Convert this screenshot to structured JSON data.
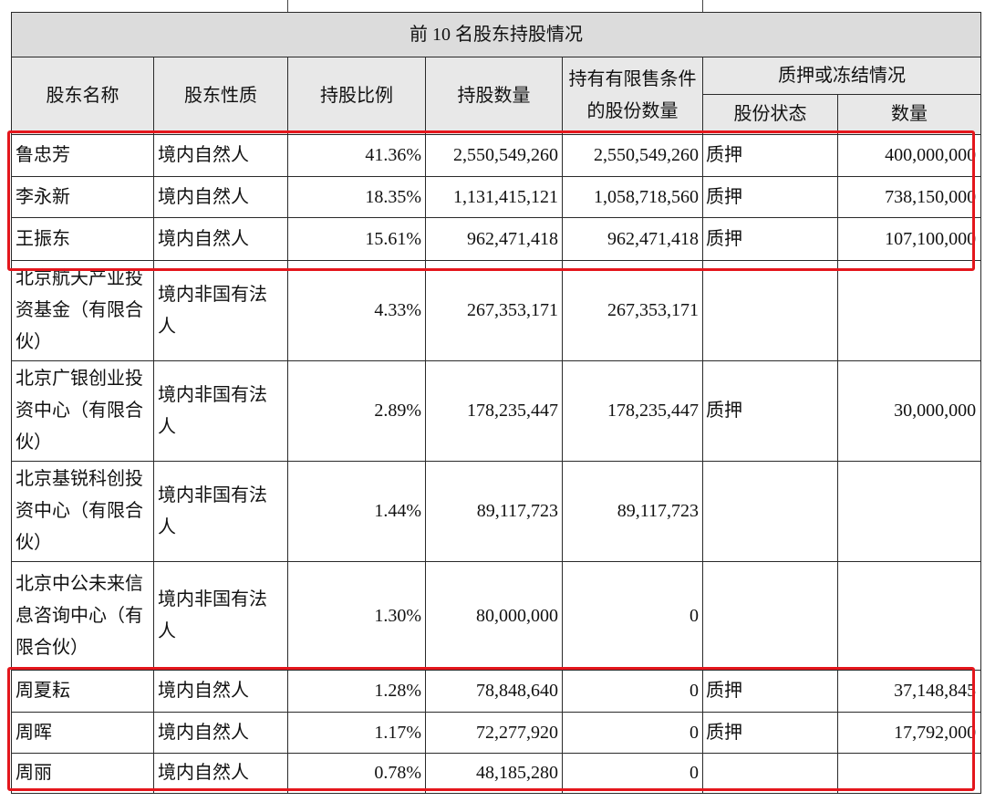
{
  "table": {
    "title": "前 10 名股东持股情况",
    "headers": {
      "name": "股东名称",
      "nature": "股东性质",
      "ratio": "持股比例",
      "shares": "持股数量",
      "restricted": "持有有限售条件的股份数量",
      "pledge_group": "质押或冻结情况",
      "pledge_status": "股份状态",
      "pledge_amount": "数量"
    },
    "rows": [
      {
        "name": "鲁忠芳",
        "nature": "境内自然人",
        "ratio": "41.36%",
        "shares": "2,550,549,260",
        "restricted": "2,550,549,260",
        "pledge_status": "质押",
        "pledge_amount": "400,000,000"
      },
      {
        "name": "李永新",
        "nature": "境内自然人",
        "ratio": "18.35%",
        "shares": "1,131,415,121",
        "restricted": "1,058,718,560",
        "pledge_status": "质押",
        "pledge_amount": "738,150,000"
      },
      {
        "name": "王振东",
        "nature": "境内自然人",
        "ratio": "15.61%",
        "shares": "962,471,418",
        "restricted": "962,471,418",
        "pledge_status": "质押",
        "pledge_amount": "107,100,000"
      },
      {
        "name": "北京航天产业投资基金（有限合伙）",
        "nature": "境内非国有法人",
        "ratio": "4.33%",
        "shares": "267,353,171",
        "restricted": "267,353,171"
      },
      {
        "name": "北京广银创业投资中心（有限合伙）",
        "nature": "境内非国有法人",
        "ratio": "2.89%",
        "shares": "178,235,447",
        "restricted": "178,235,447",
        "pledge_status": "质押",
        "pledge_amount": "30,000,000"
      },
      {
        "name": "北京基锐科创投资中心（有限合伙）",
        "nature": "境内非国有法人",
        "ratio": "1.44%",
        "shares": "89,117,723",
        "restricted": "89,117,723"
      },
      {
        "name": "北京中公未来信息咨询中心（有限合伙）",
        "nature": "境内非国有法人",
        "ratio": "1.30%",
        "shares": "80,000,000",
        "restricted": "0"
      },
      {
        "name": "周夏耘",
        "nature": "境内自然人",
        "ratio": "1.28%",
        "shares": "78,848,640",
        "restricted": "0",
        "pledge_status": "质押",
        "pledge_amount": "37,148,845"
      },
      {
        "name": "周晖",
        "nature": "境内自然人",
        "ratio": "1.17%",
        "shares": "72,277,920",
        "restricted": "0",
        "pledge_status": "质押",
        "pledge_amount": "17,792,000"
      },
      {
        "name": "周丽",
        "nature": "境内自然人",
        "ratio": "0.78%",
        "shares": "48,185,280",
        "restricted": "0"
      }
    ]
  },
  "highlight_color": "#e4161c"
}
